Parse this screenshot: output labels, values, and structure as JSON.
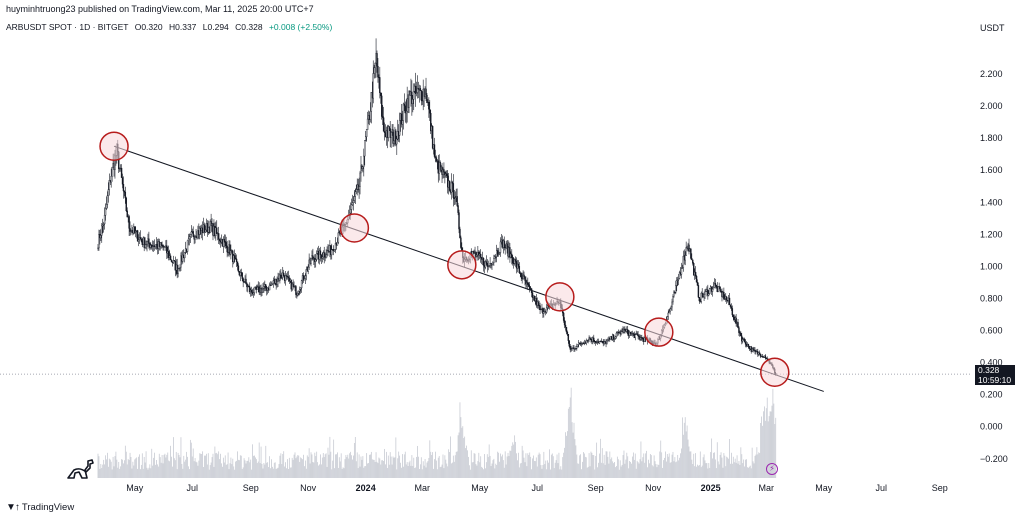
{
  "header": {
    "published": "huyminhtruong23 published on TradingView.com, Mar 11, 2025 20:00 UTC+7",
    "symbol": "ARBUSDT SPOT · 1D · BITGET",
    "open": "O0.320",
    "high": "H0.337",
    "low": "L0.294",
    "close": "C0.328",
    "change": "+0.008 (+2.50%)",
    "currency": "USDT"
  },
  "price_tag": {
    "price": "0.328",
    "countdown": "10:59:10"
  },
  "brand": {
    "name": "TradingView"
  },
  "colors": {
    "candle": "#131722",
    "volume": "#c8cbd3",
    "trendline": "#131722",
    "circle_stroke": "#b71c1c",
    "circle_fill": "#f8d7da",
    "price_line": "#8a8e99"
  },
  "icons": [
    "dinosaur-icon",
    "lightning-icon",
    "tradingview-logo-icon"
  ],
  "chart_data": {
    "type": "candlestick",
    "title": "ARBUSDT SPOT · 1D · BITGET",
    "ylabel": "USDT",
    "ylim": [
      -0.32,
      2.45
    ],
    "y_ticks": [
      "2.200",
      "2.000",
      "1.800",
      "1.600",
      "1.400",
      "1.200",
      "1.000",
      "0.800",
      "0.600",
      "0.400",
      "0.200",
      "0.000",
      "−0.200"
    ],
    "y_tick_values": [
      2.2,
      2.0,
      1.8,
      1.6,
      1.4,
      1.2,
      1.0,
      0.8,
      0.6,
      0.4,
      0.2,
      0.0,
      -0.2
    ],
    "x_ticks": [
      {
        "label": "May",
        "date": "2023-05-01",
        "bold": false
      },
      {
        "label": "Jul",
        "date": "2023-07-01",
        "bold": false
      },
      {
        "label": "Sep",
        "date": "2023-09-01",
        "bold": false
      },
      {
        "label": "Nov",
        "date": "2023-11-01",
        "bold": false
      },
      {
        "label": "2024",
        "date": "2024-01-01",
        "bold": true
      },
      {
        "label": "Mar",
        "date": "2024-03-01",
        "bold": false
      },
      {
        "label": "May",
        "date": "2024-05-01",
        "bold": false
      },
      {
        "label": "Jul",
        "date": "2024-07-01",
        "bold": false
      },
      {
        "label": "Sep",
        "date": "2024-09-01",
        "bold": false
      },
      {
        "label": "Nov",
        "date": "2024-11-01",
        "bold": false
      },
      {
        "label": "2025",
        "date": "2025-01-01",
        "bold": true
      },
      {
        "label": "Mar",
        "date": "2025-03-01",
        "bold": false
      },
      {
        "label": "May",
        "date": "2025-05-01",
        "bold": false
      },
      {
        "label": "Jul",
        "date": "2025-07-01",
        "bold": false
      },
      {
        "label": "Sep",
        "date": "2025-09-01",
        "bold": false
      }
    ],
    "x_range": [
      "2023-03-23",
      "2025-10-01"
    ],
    "price_anchors": [
      {
        "date": "2023-03-23",
        "close": 1.15
      },
      {
        "date": "2023-03-30",
        "close": 1.3
      },
      {
        "date": "2023-04-05",
        "close": 1.55
      },
      {
        "date": "2023-04-12",
        "close": 1.72
      },
      {
        "date": "2023-04-18",
        "close": 1.5
      },
      {
        "date": "2023-04-25",
        "close": 1.25
      },
      {
        "date": "2023-05-10",
        "close": 1.15
      },
      {
        "date": "2023-06-01",
        "close": 1.12
      },
      {
        "date": "2023-06-15",
        "close": 0.98
      },
      {
        "date": "2023-07-01",
        "close": 1.2
      },
      {
        "date": "2023-07-20",
        "close": 1.25
      },
      {
        "date": "2023-08-10",
        "close": 1.1
      },
      {
        "date": "2023-08-20",
        "close": 0.96
      },
      {
        "date": "2023-09-01",
        "close": 0.84
      },
      {
        "date": "2023-09-20",
        "close": 0.87
      },
      {
        "date": "2023-10-05",
        "close": 0.95
      },
      {
        "date": "2023-10-20",
        "close": 0.84
      },
      {
        "date": "2023-11-05",
        "close": 1.05
      },
      {
        "date": "2023-11-25",
        "close": 1.1
      },
      {
        "date": "2023-12-10",
        "close": 1.25
      },
      {
        "date": "2023-12-25",
        "close": 1.5
      },
      {
        "date": "2024-01-05",
        "close": 1.95
      },
      {
        "date": "2024-01-12",
        "close": 2.3
      },
      {
        "date": "2024-01-20",
        "close": 1.85
      },
      {
        "date": "2024-02-01",
        "close": 1.8
      },
      {
        "date": "2024-02-15",
        "close": 2.05
      },
      {
        "date": "2024-03-05",
        "close": 2.1
      },
      {
        "date": "2024-03-15",
        "close": 1.65
      },
      {
        "date": "2024-03-25",
        "close": 1.55
      },
      {
        "date": "2024-04-05",
        "close": 1.45
      },
      {
        "date": "2024-04-13",
        "close": 1.05
      },
      {
        "date": "2024-04-25",
        "close": 1.08
      },
      {
        "date": "2024-05-10",
        "close": 1.0
      },
      {
        "date": "2024-05-25",
        "close": 1.15
      },
      {
        "date": "2024-06-05",
        "close": 1.05
      },
      {
        "date": "2024-06-20",
        "close": 0.88
      },
      {
        "date": "2024-07-05",
        "close": 0.72
      },
      {
        "date": "2024-07-25",
        "close": 0.78
      },
      {
        "date": "2024-08-05",
        "close": 0.48
      },
      {
        "date": "2024-08-25",
        "close": 0.55
      },
      {
        "date": "2024-09-10",
        "close": 0.52
      },
      {
        "date": "2024-09-30",
        "close": 0.6
      },
      {
        "date": "2024-10-20",
        "close": 0.55
      },
      {
        "date": "2024-11-05",
        "close": 0.52
      },
      {
        "date": "2024-11-20",
        "close": 0.75
      },
      {
        "date": "2024-12-01",
        "close": 1.0
      },
      {
        "date": "2024-12-08",
        "close": 1.15
      },
      {
        "date": "2024-12-20",
        "close": 0.8
      },
      {
        "date": "2025-01-05",
        "close": 0.88
      },
      {
        "date": "2025-01-20",
        "close": 0.78
      },
      {
        "date": "2025-02-03",
        "close": 0.55
      },
      {
        "date": "2025-02-15",
        "close": 0.47
      },
      {
        "date": "2025-02-28",
        "close": 0.44
      },
      {
        "date": "2025-03-05",
        "close": 0.4
      },
      {
        "date": "2025-03-11",
        "close": 0.328
      }
    ],
    "trendline": {
      "from": {
        "date": "2023-04-09",
        "price": 1.75
      },
      "to": {
        "date": "2025-05-01",
        "price": 0.22
      }
    },
    "touch_points": [
      {
        "date": "2023-04-09",
        "price": 1.75
      },
      {
        "date": "2023-12-20",
        "price": 1.24
      },
      {
        "date": "2024-04-12",
        "price": 1.01
      },
      {
        "date": "2024-07-25",
        "price": 0.81
      },
      {
        "date": "2024-11-07",
        "price": 0.59
      },
      {
        "date": "2025-03-10",
        "price": 0.34
      }
    ],
    "last_price": 0.328,
    "volume_peaks": [
      {
        "date": "2024-04-12",
        "rel": 0.75
      },
      {
        "date": "2024-06-05",
        "rel": 0.55
      },
      {
        "date": "2024-08-05",
        "rel": 1.0
      },
      {
        "date": "2024-12-05",
        "rel": 0.65
      },
      {
        "date": "2025-03-01",
        "rel": 1.0
      },
      {
        "date": "2025-03-08",
        "rel": 1.0
      }
    ]
  }
}
